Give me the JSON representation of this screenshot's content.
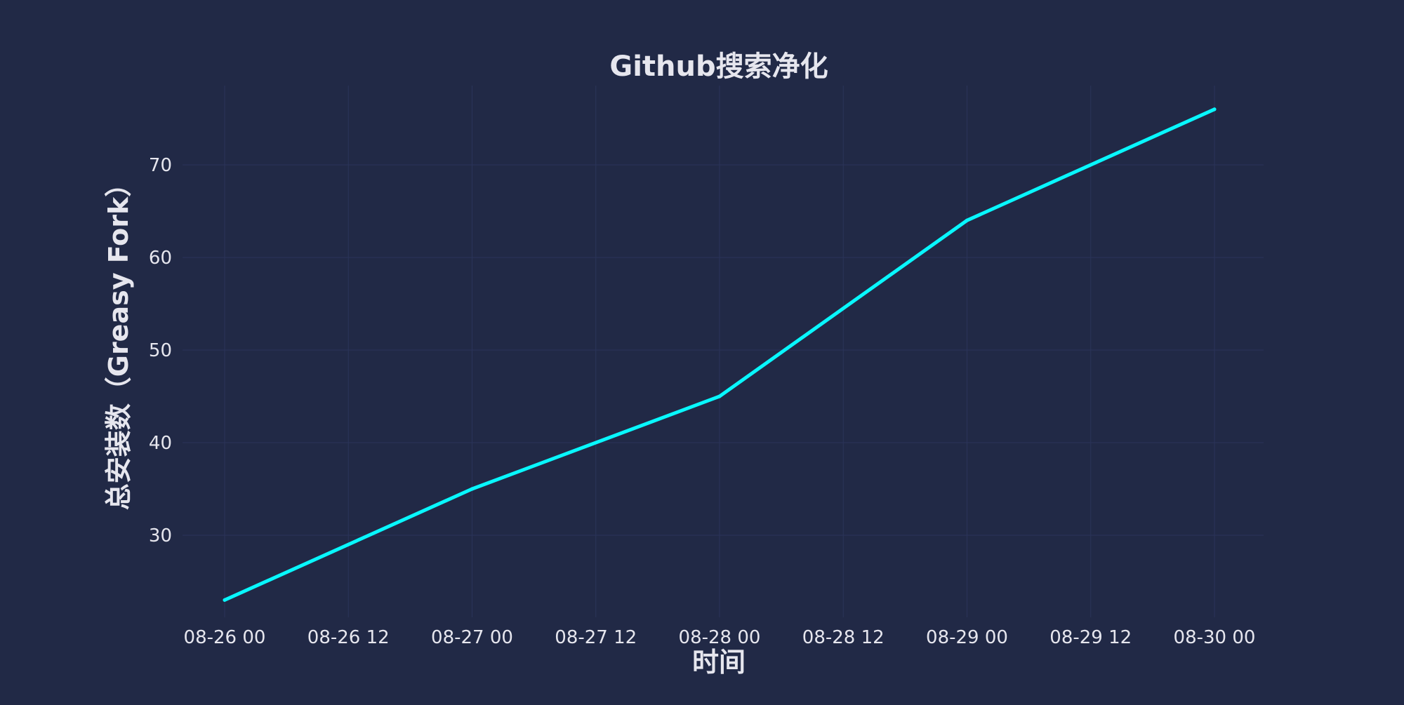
{
  "chart_data": {
    "type": "line",
    "title": "Github搜索净化",
    "xlabel": "时间",
    "ylabel": "总安装数（Greasy Fork）",
    "x_tick_labels": [
      "08-26 00",
      "08-26 12",
      "08-27 00",
      "08-27 12",
      "08-28 00",
      "08-28 12",
      "08-29 00",
      "08-29 12",
      "08-30 00"
    ],
    "y_ticks": [
      30,
      40,
      50,
      60,
      70
    ],
    "x": [
      "08-26",
      "08-27",
      "08-28",
      "08-29",
      "08-30"
    ],
    "series": [
      {
        "values": [
          23,
          35,
          45,
          64,
          76
        ]
      }
    ],
    "ylim": [
      21,
      78
    ],
    "grid": true,
    "colors": {
      "background": "#212946",
      "line": "#08F7FE",
      "grid": "#2A3459",
      "text": "#E6E6EE"
    }
  }
}
